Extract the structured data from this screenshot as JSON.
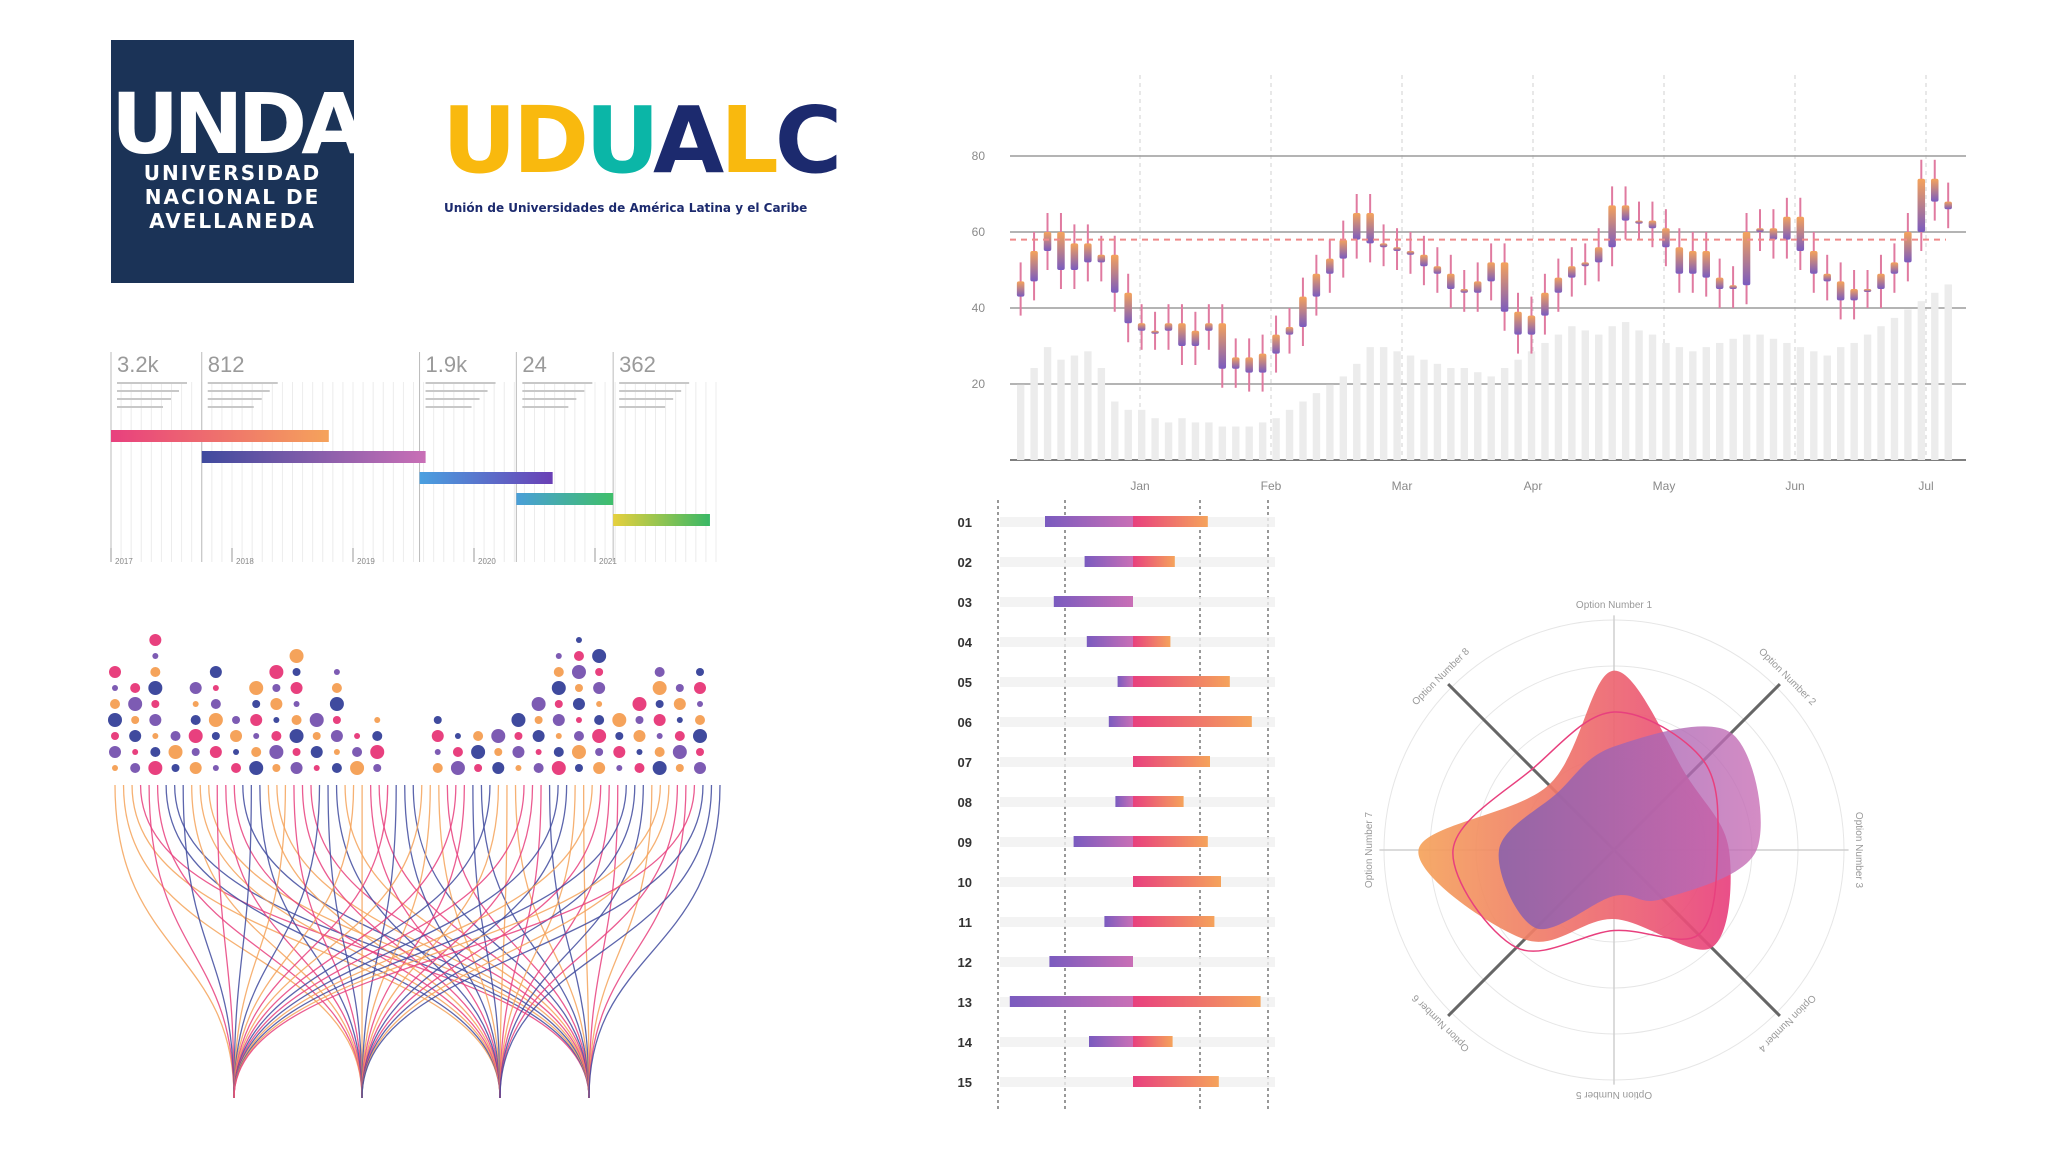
{
  "logos": {
    "undav": {
      "mark": "UNDAV",
      "name_lines": [
        "UNIVERSIDAD",
        "NACIONAL DE",
        "AVELLANEDA"
      ],
      "color": "#1b3357"
    },
    "udualc": {
      "letters": [
        "U",
        "D",
        "U",
        "A",
        "L",
        "C"
      ],
      "colors": [
        "#f9b90e",
        "#f9b90e",
        "#0bb6a7",
        "#1c2a6e",
        "#1c2a6e",
        "#1c2a6e"
      ],
      "subtitle": "Unión de Universidades de América Latina y el Caribe"
    }
  },
  "chart_data": [
    {
      "type": "timeline",
      "kpis": [
        "3.2k",
        "812",
        "1.9k",
        "24",
        "362"
      ],
      "x_ticks": [
        "2017",
        "2018",
        "2019",
        "2020",
        "2021"
      ],
      "bars": [
        {
          "start": 2017.0,
          "end": 2018.8,
          "colors": [
            "#e8407e",
            "#f5a35b"
          ]
        },
        {
          "start": 2017.75,
          "end": 2019.6,
          "colors": [
            "#3f4a9e",
            "#c96fb6"
          ]
        },
        {
          "start": 2019.55,
          "end": 2020.65,
          "colors": [
            "#4aa0e0",
            "#6a3fb5"
          ]
        },
        {
          "start": 2020.35,
          "end": 2021.15,
          "colors": [
            "#4a9fd8",
            "#3fbf6a"
          ]
        },
        {
          "start": 2021.15,
          "end": 2021.95,
          "colors": [
            "#e6d03d",
            "#39b866"
          ]
        }
      ]
    },
    {
      "type": "candlestick",
      "x_ticks": [
        "Jan",
        "Feb",
        "Mar",
        "Apr",
        "May",
        "Jun",
        "Jul"
      ],
      "y_ticks": [
        20,
        40,
        60,
        80
      ],
      "ylim": [
        0,
        100
      ],
      "reference_line": 58,
      "values": [
        47,
        55,
        60,
        50,
        57,
        52,
        54,
        44,
        36,
        34,
        34,
        36,
        30,
        34,
        36,
        24,
        27,
        23,
        28,
        33,
        35,
        43,
        49,
        53,
        58,
        65,
        57,
        56,
        55,
        54,
        51,
        49,
        45,
        44,
        47,
        52,
        39,
        33,
        38,
        44,
        48,
        51,
        52,
        56,
        67,
        63,
        63,
        61,
        56,
        49,
        55,
        48,
        45,
        46,
        60,
        61,
        58,
        64,
        55,
        49,
        47,
        42,
        45,
        45,
        49,
        52,
        60,
        74,
        68,
        66
      ],
      "volume": [
        18,
        22,
        27,
        24,
        25,
        26,
        22,
        14,
        12,
        12,
        10,
        9,
        10,
        9,
        9,
        8,
        8,
        8,
        9,
        10,
        12,
        14,
        16,
        18,
        20,
        23,
        27,
        27,
        26,
        25,
        24,
        23,
        22,
        22,
        21,
        20,
        22,
        24,
        26,
        28,
        30,
        32,
        31,
        30,
        32,
        33,
        31,
        30,
        28,
        27,
        26,
        27,
        28,
        29,
        30,
        30,
        29,
        28,
        27,
        26,
        25,
        27,
        28,
        30,
        32,
        34,
        36,
        38,
        40,
        42
      ]
    },
    {
      "type": "dot_matrix",
      "columns": [
        7,
        6,
        9,
        3,
        6,
        7,
        4,
        6,
        7,
        8,
        4,
        7,
        3,
        4,
        4,
        3,
        4,
        3,
        3,
        3,
        4,
        5,
        8,
        9,
        8,
        4,
        5,
        7,
        6,
        7
      ],
      "colors": [
        "#f5a35b",
        "#7d5bb3",
        "#e8407e",
        "#3f4a9e"
      ]
    },
    {
      "type": "flow",
      "colors": [
        "#f5a35b",
        "#e8407e",
        "#3f4a9e"
      ]
    },
    {
      "type": "diverging_bar",
      "categories": [
        "01",
        "02",
        "03",
        "04",
        "05",
        "06",
        "07",
        "08",
        "09",
        "10",
        "11",
        "12",
        "13",
        "14",
        "15"
      ],
      "left": [
        -4,
        -2.2,
        -3.6,
        -2.1,
        -0.7,
        -1.1,
        0,
        -0.8,
        -2.7,
        0,
        -1.3,
        -3.8,
        -5.6,
        -2,
        0
      ],
      "right": [
        3.4,
        1.9,
        0,
        1.7,
        4.4,
        5.4,
        3.5,
        2.3,
        3.4,
        4,
        3.7,
        0,
        5.8,
        1.8,
        3.9
      ],
      "xlim": [
        -6,
        6
      ]
    },
    {
      "type": "radar",
      "axes": [
        "Option Number 1",
        "Option Number 2",
        "Option Number 3",
        "Option Number 4",
        "Option Number 5",
        "Option Number 6",
        "Option Number 7",
        "Option Number 8"
      ],
      "series": [
        {
          "values": [
            0.78,
            0.45,
            0.5,
            0.6,
            0.3,
            0.55,
            0.85,
            0.4
          ],
          "colors": [
            "#f5a35b",
            "#e8407e"
          ]
        },
        {
          "values": [
            0.45,
            0.72,
            0.62,
            0.3,
            0.2,
            0.48,
            0.5,
            0.35
          ],
          "colors": [
            "#7d5bb3",
            "#c96fb6"
          ]
        }
      ]
    }
  ]
}
